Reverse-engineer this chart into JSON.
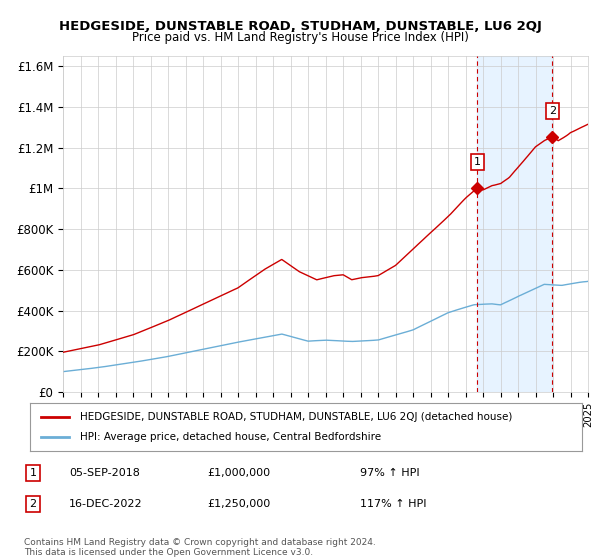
{
  "title": "HEDGESIDE, DUNSTABLE ROAD, STUDHAM, DUNSTABLE, LU6 2QJ",
  "subtitle": "Price paid vs. HM Land Registry's House Price Index (HPI)",
  "ylabel_ticks": [
    "£0",
    "£200K",
    "£400K",
    "£600K",
    "£800K",
    "£1M",
    "£1.2M",
    "£1.4M",
    "£1.6M"
  ],
  "ytick_values": [
    0,
    200000,
    400000,
    600000,
    800000,
    1000000,
    1200000,
    1400000,
    1600000
  ],
  "ylim": [
    0,
    1650000
  ],
  "year_start": 1995,
  "year_end": 2025,
  "hpi_color": "#6baed6",
  "price_color": "#cc0000",
  "dashed_color": "#cc0000",
  "shade_color": "#ddeeff",
  "marker1_date": 2018.67,
  "marker1_price": 1000000,
  "marker1_label": "1",
  "marker2_date": 2022.96,
  "marker2_price": 1250000,
  "marker2_label": "2",
  "legend_line1": "HEDGESIDE, DUNSTABLE ROAD, STUDHAM, DUNSTABLE, LU6 2QJ (detached house)",
  "legend_line2": "HPI: Average price, detached house, Central Bedfordshire",
  "annot1_num": "1",
  "annot1_date": "05-SEP-2018",
  "annot1_price": "£1,000,000",
  "annot1_hpi": "97% ↑ HPI",
  "annot2_num": "2",
  "annot2_date": "16-DEC-2022",
  "annot2_price": "£1,250,000",
  "annot2_hpi": "117% ↑ HPI",
  "footer": "Contains HM Land Registry data © Crown copyright and database right 2024.\nThis data is licensed under the Open Government Licence v3.0.",
  "background_color": "#ffffff",
  "grid_color": "#cccccc"
}
